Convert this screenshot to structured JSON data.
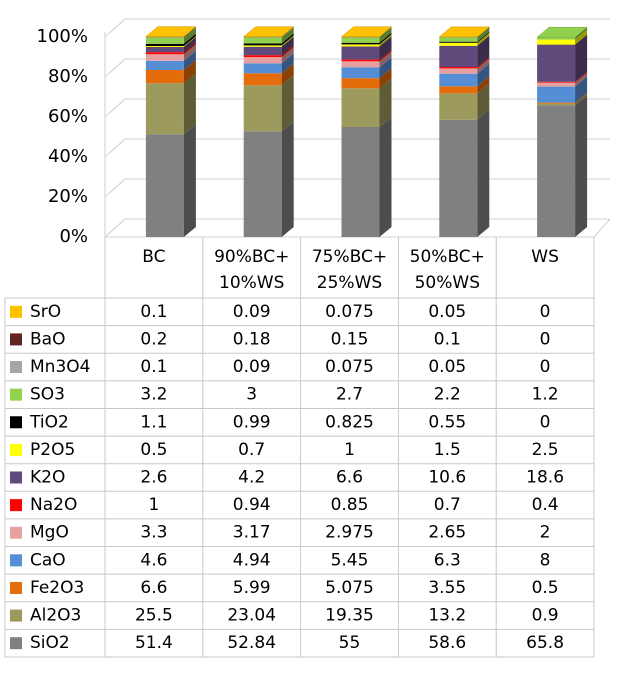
{
  "chart_data": {
    "type": "bar",
    "stacked": true,
    "categories": [
      "BC",
      "90%BC+ 10%WS",
      "75%BC+ 25%WS",
      "50%BC+ 50%WS",
      "WS"
    ],
    "ylim": [
      0,
      100
    ],
    "yticks": [
      {
        "value": 0,
        "label": "0%"
      },
      {
        "value": 20,
        "label": "20%"
      },
      {
        "value": 40,
        "label": "40%"
      },
      {
        "value": 60,
        "label": "60%"
      },
      {
        "value": 80,
        "label": "80%"
      },
      {
        "value": 100,
        "label": "100%"
      }
    ],
    "grid": true,
    "series": [
      {
        "name": "SiO2",
        "color": "#808080",
        "values": [
          51.4,
          52.84,
          55,
          58.6,
          65.8
        ]
      },
      {
        "name": "Al2O3",
        "color": "#9c9a5c",
        "values": [
          25.5,
          23.04,
          19.35,
          13.2,
          0.9
        ]
      },
      {
        "name": "Fe2O3",
        "color": "#e46c0a",
        "values": [
          6.6,
          5.99,
          5.075,
          3.55,
          0.5
        ]
      },
      {
        "name": "CaO",
        "color": "#558ed5",
        "values": [
          4.6,
          4.94,
          5.45,
          6.3,
          8
        ]
      },
      {
        "name": "MgO",
        "color": "#e6a0a0",
        "values": [
          3.3,
          3.17,
          2.975,
          2.65,
          2
        ]
      },
      {
        "name": "Na2O",
        "color": "#ff0000",
        "values": [
          1,
          0.94,
          0.85,
          0.7,
          0.4
        ]
      },
      {
        "name": "K2O",
        "color": "#604a7b",
        "values": [
          2.6,
          4.2,
          6.6,
          10.6,
          18.6
        ]
      },
      {
        "name": "P2O5",
        "color": "#ffff00",
        "values": [
          0.5,
          0.7,
          1,
          1.5,
          2.5
        ]
      },
      {
        "name": "TiO2",
        "color": "#000000",
        "values": [
          1.1,
          0.99,
          0.825,
          0.55,
          0
        ]
      },
      {
        "name": "SO3",
        "color": "#92d050",
        "values": [
          3.2,
          3,
          2.7,
          2.2,
          1.2
        ]
      },
      {
        "name": "Mn3O4",
        "color": "#a6a6a6",
        "values": [
          0.1,
          0.09,
          0.075,
          0.05,
          0
        ]
      },
      {
        "name": "BaO",
        "color": "#632523",
        "values": [
          0.2,
          0.18,
          0.15,
          0.1,
          0
        ]
      },
      {
        "name": "SrO",
        "color": "#ffc000",
        "values": [
          0.1,
          0.09,
          0.075,
          0.05,
          0
        ]
      }
    ]
  }
}
